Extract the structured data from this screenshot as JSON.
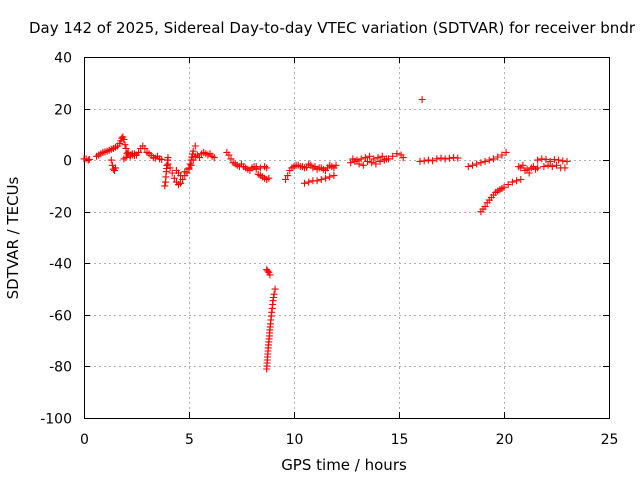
{
  "chart_data": {
    "type": "scatter",
    "title": "Day 142 of 2025, Sidereal Day-to-day VTEC variation (SDTVAR) for receiver bndr",
    "xlabel": "GPS time / hours",
    "ylabel": "SDTVAR / TECUs",
    "xlim": [
      0,
      25
    ],
    "ylim": [
      -100,
      40
    ],
    "xticks": [
      "0",
      "5",
      "10",
      "15",
      "20",
      "25"
    ],
    "yticks": [
      "40",
      "20",
      "0",
      "-20",
      "-40",
      "-60",
      "-80",
      "-100"
    ],
    "xtick_values": [
      0,
      5,
      10,
      15,
      20,
      25
    ],
    "ytick_values": [
      40,
      20,
      0,
      -20,
      -40,
      -60,
      -80,
      -100
    ],
    "grid": true,
    "marker": "+",
    "color": "#ff0000",
    "series": [
      {
        "name": "SDTVAR",
        "segments": [
          {
            "x": [
              0.0,
              0.1,
              0.2,
              0.25
            ],
            "y": [
              0.5,
              0.5,
              0.0,
              0.3
            ]
          },
          {
            "x": [
              0.6,
              0.7,
              0.8,
              0.9,
              1.0,
              1.1,
              1.2,
              1.3,
              1.4,
              1.5,
              1.6,
              1.7,
              1.75,
              1.8,
              1.85,
              1.9,
              1.95,
              2.0,
              2.05,
              2.1,
              2.2,
              2.3,
              2.4,
              2.5,
              2.6,
              2.7,
              2.8,
              2.9,
              3.0,
              3.1,
              3.2,
              3.3,
              3.4,
              3.5,
              3.6,
              3.7
            ],
            "y": [
              1.5,
              2.0,
              2.5,
              3.0,
              3.2,
              3.5,
              3.8,
              4.2,
              4.5,
              5.0,
              5.5,
              6.5,
              7.5,
              8.5,
              9.0,
              8.0,
              6.0,
              4.5,
              2.5,
              3.0,
              2.0,
              2.5,
              1.8,
              2.0,
              3.0,
              4.5,
              5.5,
              4.5,
              3.0,
              2.5,
              1.8,
              1.0,
              0.8,
              1.5,
              0.5,
              0.3
            ]
          },
          {
            "x": [
              1.3,
              1.35,
              1.4,
              1.45,
              1.5
            ],
            "y": [
              0.0,
              -2.0,
              -3.5,
              -4.0,
              -3.0
            ]
          },
          {
            "x": [
              1.9,
              2.0,
              2.1,
              2.2,
              2.3,
              2.4
            ],
            "y": [
              0.5,
              1.0,
              3.0,
              1.5,
              2.0,
              2.5
            ]
          },
          {
            "x": [
              3.85,
              3.88,
              3.9,
              3.92,
              3.95,
              3.98,
              4.0
            ],
            "y": [
              -10.0,
              -8.5,
              -6.5,
              -4.5,
              -2.0,
              0.0,
              1.0
            ]
          },
          {
            "x": [
              4.0,
              4.1,
              4.2,
              4.3,
              4.4,
              4.5,
              4.6,
              4.7,
              4.8,
              4.9,
              5.0,
              5.1,
              5.2,
              5.3,
              5.4,
              5.5,
              5.6,
              5.7,
              5.8,
              5.9,
              6.0,
              6.1,
              6.2
            ],
            "y": [
              -1.5,
              -3.0,
              -5.0,
              -7.0,
              -8.5,
              -9.5,
              -9.0,
              -7.5,
              -6.0,
              -5.0,
              -3.5,
              -2.0,
              0.0,
              1.5,
              2.0,
              1.0,
              2.5,
              3.0,
              2.5,
              2.0,
              2.5,
              1.5,
              1.0
            ]
          },
          {
            "x": [
              4.4,
              4.6,
              4.8,
              5.0,
              5.1,
              5.2,
              5.3
            ],
            "y": [
              -4.0,
              -6.0,
              -4.5,
              -3.0,
              0.0,
              3.5,
              5.5
            ]
          },
          {
            "x": [
              6.8,
              6.9,
              7.0,
              7.1,
              7.2,
              7.3,
              7.4,
              7.5,
              7.6,
              7.7,
              7.8,
              7.9,
              8.0,
              8.1,
              8.2,
              8.3,
              8.4,
              8.5,
              8.6,
              8.7,
              8.8
            ],
            "y": [
              3.0,
              2.0,
              0.5,
              -1.0,
              -1.5,
              -2.0,
              -2.5,
              -1.5,
              -2.5,
              -3.0,
              -3.5,
              -4.0,
              -3.0,
              -2.5,
              -3.5,
              -5.5,
              -6.0,
              -6.5,
              -7.0,
              -7.5,
              -7.0
            ]
          },
          {
            "x": [
              8.0,
              8.2,
              8.4,
              8.6,
              8.7
            ],
            "y": [
              -3.0,
              -2.5,
              -3.0,
              -2.5,
              -3.0
            ]
          },
          {
            "x": [
              8.7,
              8.75,
              8.8,
              8.85
            ],
            "y": [
              -42.5,
              -43.0,
              -43.5,
              -44.5
            ]
          },
          {
            "x": [
              8.7,
              8.73,
              8.76,
              8.8,
              8.84,
              8.88,
              8.92,
              8.96,
              9.0,
              9.05,
              9.1
            ],
            "y": [
              -81.0,
              -77.5,
              -74.0,
              -70.5,
              -67.0,
              -63.5,
              -60.5,
              -57.5,
              -54.5,
              -52.0,
              -50.0
            ]
          },
          {
            "x": [
              9.6,
              9.7,
              9.8,
              9.9,
              10.0,
              10.1,
              10.2,
              10.3,
              10.4,
              10.5,
              10.6,
              10.7,
              10.8,
              10.9,
              11.0,
              11.1,
              11.2,
              11.3,
              11.4,
              11.5,
              11.6,
              11.7,
              11.8,
              11.9,
              12.0
            ],
            "y": [
              -7.5,
              -6.0,
              -4.0,
              -3.0,
              -2.5,
              -2.0,
              -2.0,
              -2.5,
              -2.5,
              -3.0,
              -2.8,
              -1.5,
              -2.0,
              -3.0,
              -2.5,
              -3.5,
              -3.0,
              -3.0,
              -3.5,
              -4.0,
              -3.0,
              -2.0,
              -2.5,
              -3.0,
              -2.0
            ]
          },
          {
            "x": [
              10.5,
              10.7,
              10.9,
              11.1,
              11.3,
              11.5,
              11.7,
              11.9
            ],
            "y": [
              -9.0,
              -8.5,
              -8.0,
              -8.0,
              -7.5,
              -7.0,
              -6.5,
              -6.0
            ]
          },
          {
            "x": [
              12.7,
              12.9,
              13.1,
              13.3,
              13.5,
              13.7,
              13.9,
              14.1,
              14.3,
              14.5,
              14.7,
              14.9,
              15.1,
              15.2
            ],
            "y": [
              -1.0,
              -0.5,
              -1.5,
              -2.0,
              -0.5,
              -1.0,
              -1.5,
              -0.5,
              0.0,
              0.5,
              1.5,
              2.5,
              2.0,
              1.0
            ]
          },
          {
            "x": [
              12.8,
              13.0,
              13.2,
              13.4,
              13.6,
              13.8,
              14.0,
              14.2,
              14.4
            ],
            "y": [
              0.5,
              0.0,
              0.5,
              1.0,
              1.5,
              0.5,
              1.0,
              1.5,
              0.5
            ]
          },
          {
            "x": [
              16.1
            ],
            "y": [
              23.5
            ]
          },
          {
            "x": [
              16.0,
              16.2,
              16.4,
              16.6,
              16.8,
              17.0,
              17.2,
              17.4,
              17.6,
              17.8
            ],
            "y": [
              -0.5,
              -0.3,
              0.0,
              -0.2,
              0.5,
              0.8,
              0.5,
              0.7,
              1.0,
              0.8
            ]
          },
          {
            "x": [
              18.3,
              18.5,
              18.7,
              18.9,
              19.1,
              19.3,
              19.5,
              19.7,
              19.9,
              20.1
            ],
            "y": [
              -2.5,
              -2.0,
              -1.5,
              -1.0,
              -0.5,
              0.0,
              0.5,
              1.2,
              2.0,
              3.0
            ]
          },
          {
            "x": [
              18.9,
              19.0,
              19.1,
              19.2,
              19.3,
              19.4,
              19.5,
              19.6,
              19.7,
              19.8,
              19.9,
              20.0,
              20.2,
              20.4,
              20.6,
              20.8
            ],
            "y": [
              -20.0,
              -19.0,
              -18.0,
              -16.5,
              -15.5,
              -14.5,
              -13.5,
              -12.5,
              -12.0,
              -11.5,
              -11.0,
              -10.5,
              -9.5,
              -8.5,
              -8.0,
              -7.5
            ]
          },
          {
            "x": [
              20.7,
              20.8,
              20.9,
              21.0,
              21.1,
              21.2,
              21.3,
              21.4,
              21.5,
              21.6
            ],
            "y": [
              -2.5,
              -3.0,
              -2.0,
              -4.0,
              -3.5,
              -5.0,
              -3.0,
              -2.5,
              -3.5,
              -3.0
            ]
          },
          {
            "x": [
              21.6,
              21.8,
              22.0,
              22.2,
              22.4,
              22.6,
              22.8,
              23.0
            ],
            "y": [
              0.0,
              0.5,
              0.3,
              -0.5,
              0.2,
              0.0,
              -0.3,
              -0.5
            ]
          },
          {
            "x": [
              21.9,
              22.1,
              22.3,
              22.5,
              22.7,
              22.9
            ],
            "y": [
              -2.5,
              -2.0,
              -2.5,
              -2.0,
              -3.0,
              -3.0
            ]
          }
        ]
      }
    ]
  }
}
